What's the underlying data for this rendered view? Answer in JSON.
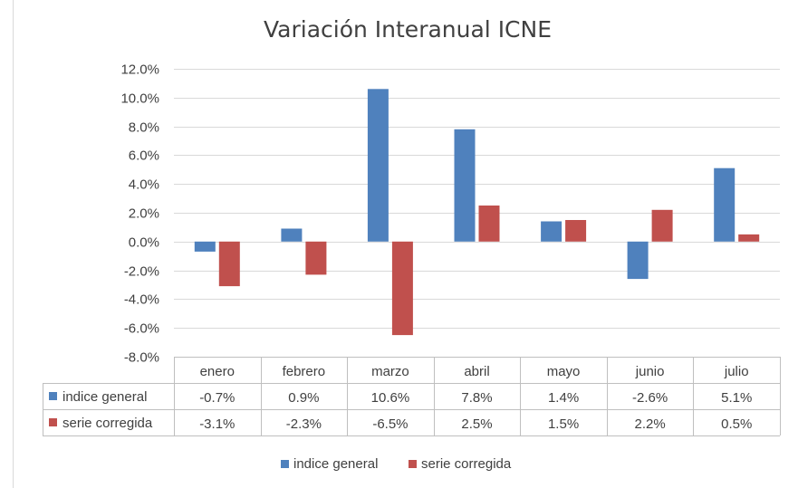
{
  "chart_data": {
    "type": "bar",
    "title": "Variación Interanual ICNE",
    "categories": [
      "enero",
      "febrero",
      "marzo",
      "abril",
      "mayo",
      "junio",
      "julio"
    ],
    "series": [
      {
        "name": "indice general",
        "color": "#4f81bd",
        "values": [
          -0.7,
          0.9,
          10.6,
          7.8,
          1.4,
          -2.6,
          5.1
        ],
        "labels": [
          "-0.7%",
          "0.9%",
          "10.6%",
          "7.8%",
          "1.4%",
          "-2.6%",
          "5.1%"
        ]
      },
      {
        "name": "serie corregida",
        "color": "#c0504d",
        "values": [
          -3.1,
          -2.3,
          -6.5,
          2.5,
          1.5,
          2.2,
          0.5
        ],
        "labels": [
          "-3.1%",
          "-2.3%",
          "-6.5%",
          "2.5%",
          "1.5%",
          "2.2%",
          "0.5%"
        ]
      }
    ],
    "ylim": [
      -8.0,
      12.0
    ],
    "yticks": [
      12.0,
      10.0,
      8.0,
      6.0,
      4.0,
      2.0,
      0.0,
      -2.0,
      -4.0,
      -6.0,
      -8.0
    ],
    "ytick_labels": [
      "12.0%",
      "10.0%",
      "8.0%",
      "6.0%",
      "4.0%",
      "2.0%",
      "0.0%",
      "-2.0%",
      "-4.0%",
      "-6.0%",
      "-8.0%"
    ],
    "grid": true,
    "data_table": true,
    "legend": "bottom"
  }
}
